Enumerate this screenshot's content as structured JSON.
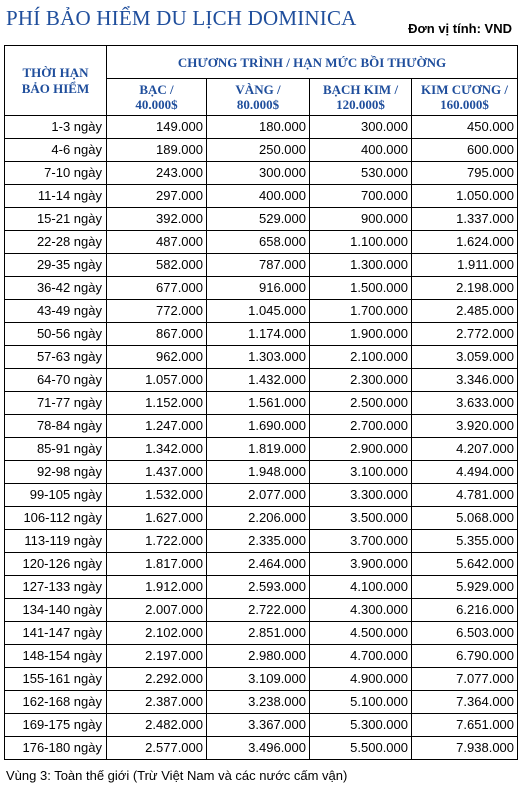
{
  "title": "PHÍ BẢO HIỂM DU LỊCH DOMINICA",
  "unit": "Đơn vị tính: VND",
  "table": {
    "term_header": [
      "THỜI HẠN",
      "BẢO HIỂM"
    ],
    "group_header": "CHƯƠNG TRÌNH / HẠN MỨC BỒI THƯỜNG",
    "plans": [
      {
        "name": "BẠC /",
        "limit": "40.000$"
      },
      {
        "name": "VÀNG /",
        "limit": "80.000$"
      },
      {
        "name": "BẠCH KIM /",
        "limit": "120.000$"
      },
      {
        "name": "KIM CƯƠNG /",
        "limit": "160.000$"
      }
    ],
    "rows": [
      {
        "term": "1-3 ngày",
        "values": [
          "149.000",
          "180.000",
          "300.000",
          "450.000"
        ]
      },
      {
        "term": "4-6 ngày",
        "values": [
          "189.000",
          "250.000",
          "400.000",
          "600.000"
        ]
      },
      {
        "term": "7-10 ngày",
        "values": [
          "243.000",
          "300.000",
          "530.000",
          "795.000"
        ]
      },
      {
        "term": "11-14 ngày",
        "values": [
          "297.000",
          "400.000",
          "700.000",
          "1.050.000"
        ]
      },
      {
        "term": "15-21 ngày",
        "values": [
          "392.000",
          "529.000",
          "900.000",
          "1.337.000"
        ]
      },
      {
        "term": "22-28 ngày",
        "values": [
          "487.000",
          "658.000",
          "1.100.000",
          "1.624.000"
        ]
      },
      {
        "term": "29-35 ngày",
        "values": [
          "582.000",
          "787.000",
          "1.300.000",
          "1.911.000"
        ]
      },
      {
        "term": "36-42 ngày",
        "values": [
          "677.000",
          "916.000",
          "1.500.000",
          "2.198.000"
        ]
      },
      {
        "term": "43-49 ngày",
        "values": [
          "772.000",
          "1.045.000",
          "1.700.000",
          "2.485.000"
        ]
      },
      {
        "term": "50-56 ngày",
        "values": [
          "867.000",
          "1.174.000",
          "1.900.000",
          "2.772.000"
        ]
      },
      {
        "term": "57-63 ngày",
        "values": [
          "962.000",
          "1.303.000",
          "2.100.000",
          "3.059.000"
        ]
      },
      {
        "term": "64-70 ngày",
        "values": [
          "1.057.000",
          "1.432.000",
          "2.300.000",
          "3.346.000"
        ]
      },
      {
        "term": "71-77 ngày",
        "values": [
          "1.152.000",
          "1.561.000",
          "2.500.000",
          "3.633.000"
        ]
      },
      {
        "term": "78-84 ngày",
        "values": [
          "1.247.000",
          "1.690.000",
          "2.700.000",
          "3.920.000"
        ]
      },
      {
        "term": "85-91 ngày",
        "values": [
          "1.342.000",
          "1.819.000",
          "2.900.000",
          "4.207.000"
        ]
      },
      {
        "term": "92-98 ngày",
        "values": [
          "1.437.000",
          "1.948.000",
          "3.100.000",
          "4.494.000"
        ]
      },
      {
        "term": "99-105 ngày",
        "values": [
          "1.532.000",
          "2.077.000",
          "3.300.000",
          "4.781.000"
        ]
      },
      {
        "term": "106-112 ngày",
        "values": [
          "1.627.000",
          "2.206.000",
          "3.500.000",
          "5.068.000"
        ]
      },
      {
        "term": "113-119 ngày",
        "values": [
          "1.722.000",
          "2.335.000",
          "3.700.000",
          "5.355.000"
        ]
      },
      {
        "term": "120-126 ngày",
        "values": [
          "1.817.000",
          "2.464.000",
          "3.900.000",
          "5.642.000"
        ]
      },
      {
        "term": "127-133 ngày",
        "values": [
          "1.912.000",
          "2.593.000",
          "4.100.000",
          "5.929.000"
        ]
      },
      {
        "term": "134-140 ngày",
        "values": [
          "2.007.000",
          "2.722.000",
          "4.300.000",
          "6.216.000"
        ]
      },
      {
        "term": "141-147 ngày",
        "values": [
          "2.102.000",
          "2.851.000",
          "4.500.000",
          "6.503.000"
        ]
      },
      {
        "term": "148-154 ngày",
        "values": [
          "2.197.000",
          "2.980.000",
          "4.700.000",
          "6.790.000"
        ]
      },
      {
        "term": "155-161 ngày",
        "values": [
          "2.292.000",
          "3.109.000",
          "4.900.000",
          "7.077.000"
        ]
      },
      {
        "term": "162-168 ngày",
        "values": [
          "2.387.000",
          "3.238.000",
          "5.100.000",
          "7.364.000"
        ]
      },
      {
        "term": "169-175 ngày",
        "values": [
          "2.482.000",
          "3.367.000",
          "5.300.000",
          "7.651.000"
        ]
      },
      {
        "term": "176-180 ngày",
        "values": [
          "2.577.000",
          "3.496.000",
          "5.500.000",
          "7.938.000"
        ]
      }
    ]
  },
  "footnote": "Vùng 3: Toàn thế giới (Trừ Việt Nam và các nước cấm vận)"
}
